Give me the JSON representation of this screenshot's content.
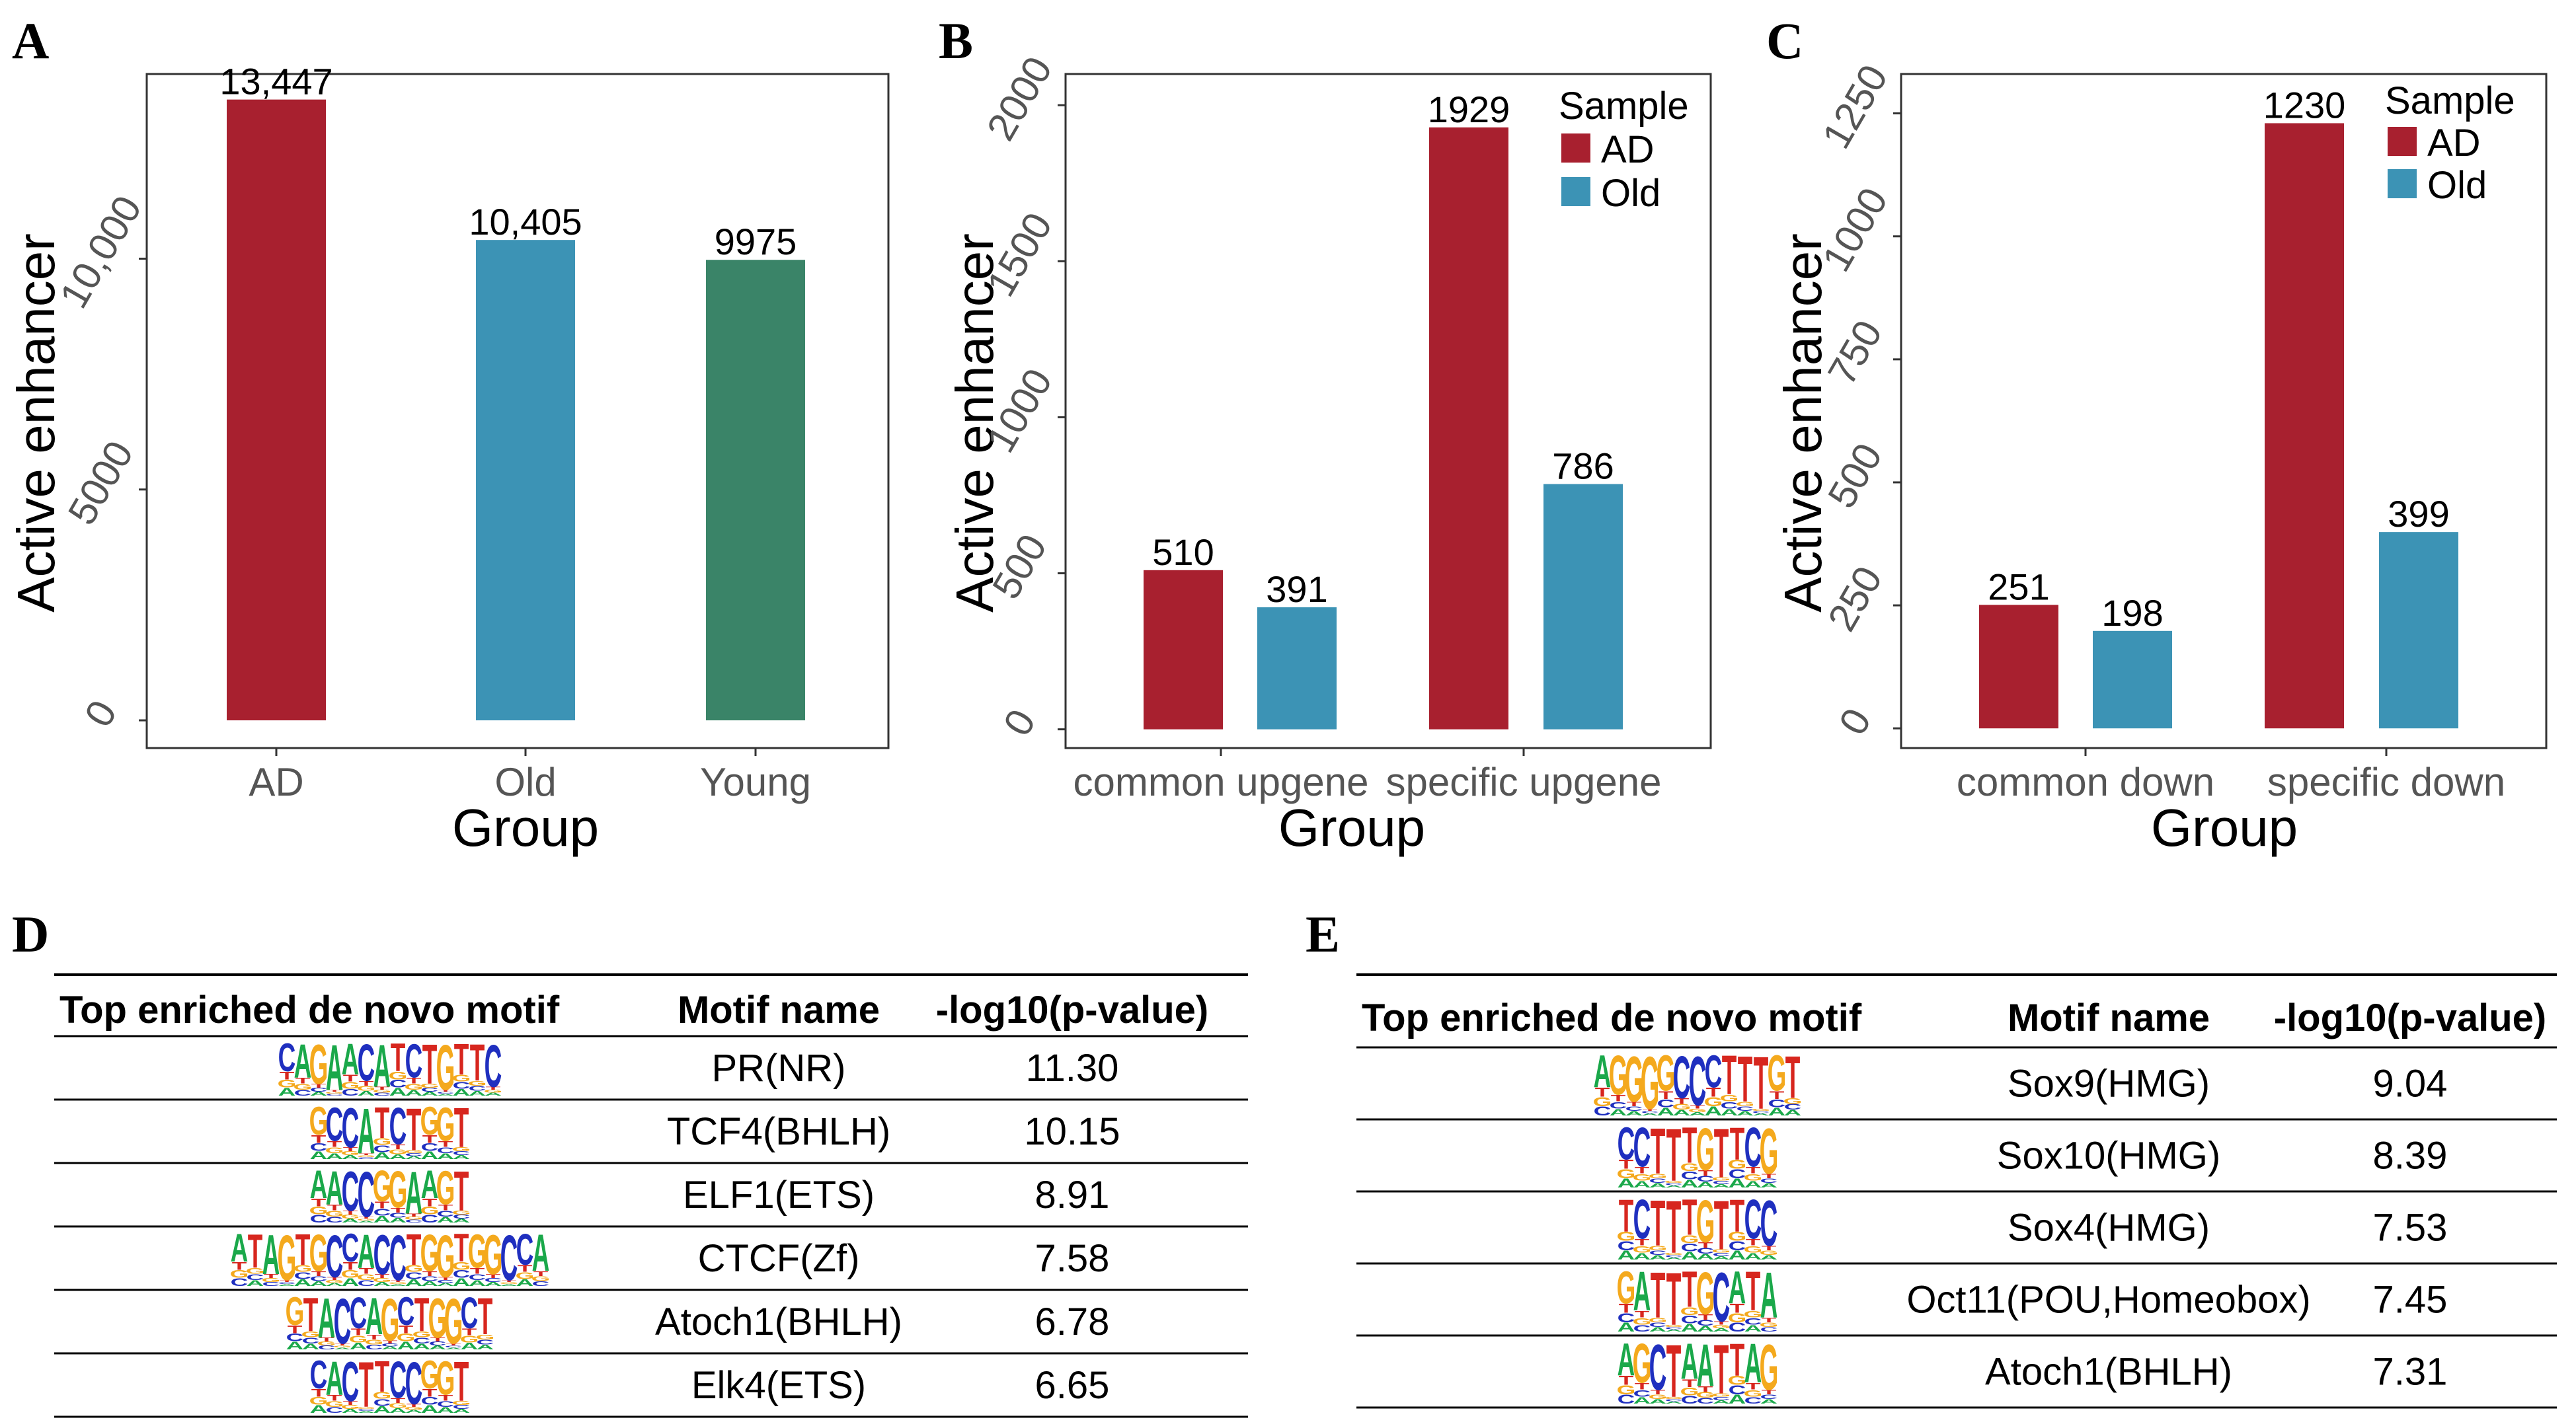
{
  "panel_letters": [
    "A",
    "B",
    "C",
    "D",
    "E"
  ],
  "colors": {
    "AD": "#A8202F",
    "Old": "#3C93B5",
    "Young": "#3A8468",
    "A": "#1AA84A",
    "C": "#1F2FBF",
    "G": "#F4A91D",
    "T": "#D7261E"
  },
  "chart_data": [
    {
      "type": "bar",
      "panel": "A",
      "xlabel": "Group",
      "ylabel": "Active enhancer",
      "categories": [
        "AD",
        "Old",
        "Young"
      ],
      "values": [
        13447,
        10405,
        9975
      ],
      "value_labels": [
        "13,447",
        "10,405",
        "9975"
      ],
      "bar_colors": [
        "#A8202F",
        "#3C93B5",
        "#3A8468"
      ],
      "yticks": [
        0,
        5000,
        10000
      ],
      "ytick_labels": [
        "0",
        "5000",
        "10,000"
      ],
      "ylim": [
        -600,
        14000
      ],
      "grid": false
    },
    {
      "type": "bar",
      "panel": "B",
      "xlabel": "Group",
      "ylabel": "Active enhancer",
      "categories": [
        "common upgene",
        "specific upgene"
      ],
      "legend_title": "Sample",
      "legend_position": "top-right",
      "series": [
        {
          "name": "AD",
          "values": [
            510,
            1929
          ],
          "color": "#A8202F"
        },
        {
          "name": "Old",
          "values": [
            391,
            786
          ],
          "color": "#3C93B5"
        }
      ],
      "yticks": [
        0,
        500,
        1000,
        1500,
        2000
      ],
      "ytick_labels": [
        "0",
        "500",
        "1000",
        "1500",
        "2000"
      ],
      "ylim": [
        -60,
        2100
      ],
      "grid": false
    },
    {
      "type": "bar",
      "panel": "C",
      "xlabel": "Group",
      "ylabel": "Active enhancer",
      "categories": [
        "common down",
        "specific down"
      ],
      "legend_title": "Sample",
      "legend_position": "top-right",
      "series": [
        {
          "name": "AD",
          "values": [
            251,
            1230
          ],
          "color": "#A8202F"
        },
        {
          "name": "Old",
          "values": [
            198,
            399
          ],
          "color": "#3C93B5"
        }
      ],
      "yticks": [
        0,
        250,
        500,
        750,
        1000,
        1250
      ],
      "ytick_labels": [
        "0",
        "250",
        "500",
        "750",
        "1000",
        "1250"
      ],
      "ylim": [
        -40,
        1330
      ],
      "grid": false
    },
    {
      "type": "table",
      "panel": "D",
      "columns": [
        "Top enriched de novo motif",
        "Motif name",
        "-log10(p-value)"
      ],
      "rows": [
        {
          "motif": "CAGAACATCTGTTC",
          "name": "PR(NR)",
          "value": "11.30"
        },
        {
          "motif": "GCCATCTGGT",
          "name": "TCF4(BHLH)",
          "value": "10.15"
        },
        {
          "motif": "AACCGGAAGT",
          "name": "ELF1(ETS)",
          "value": "8.91"
        },
        {
          "motif": "ATAGTGCCACCTGGTGGCCA",
          "name": "CTCF(Zf)",
          "value": "7.58"
        },
        {
          "motif": "GTACCAGCTGGCT",
          "name": "Atoch1(BHLH)",
          "value": "6.78"
        },
        {
          "motif": "CACTTCCGGT",
          "name": "Elk4(ETS)",
          "value": "6.65"
        }
      ]
    },
    {
      "type": "table",
      "panel": "E",
      "columns": [
        "Top enriched de novo motif",
        "Motif name",
        "-log10(p-value)"
      ],
      "rows": [
        {
          "motif": "AGGGGCCCTTTGT",
          "name": "Sox9(HMG)",
          "value": "9.04"
        },
        {
          "motif": "CCTTTGTTCG",
          "name": "Sox10(HMG)",
          "value": "8.39"
        },
        {
          "motif": "TCTTTGTTCC",
          "name": "Sox4(HMG)",
          "value": "7.53"
        },
        {
          "motif": "GATTTGCATA",
          "name": "Oct11(POU,Homeobox)",
          "value": "7.45"
        },
        {
          "motif": "AGCTAATTAG",
          "name": "Atoch1(BHLH)",
          "value": "7.31"
        }
      ]
    }
  ]
}
